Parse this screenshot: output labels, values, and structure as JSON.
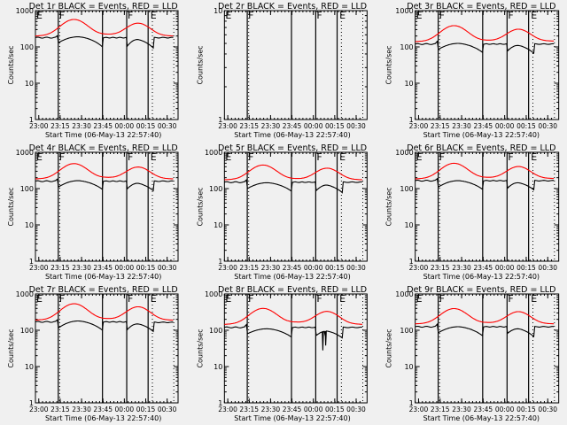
{
  "chart_data": [
    {
      "type": "line",
      "title": "Det 1r BLACK = Events, RED = LLD",
      "ylabel": "Counts/sec",
      "xlabel": "Start Time (06-May-13 22:57:40)",
      "yscale": "log",
      "ylim": [
        1,
        1000
      ],
      "yticks": [
        "1",
        "10",
        "100",
        "1000"
      ],
      "xticks": [
        "23:00",
        "23:15",
        "23:30",
        "23:45",
        "00:00",
        "00:15",
        "00:30"
      ],
      "markers": [
        {
          "label": "E",
          "x_min": 0
        },
        {
          "label": "F",
          "x_min": 16
        },
        {
          "label": "F",
          "x_min": 64
        },
        {
          "label": "E",
          "x_min": 80
        }
      ],
      "solid_lines_min": [
        16,
        47,
        64,
        79
      ],
      "dotted_lines_min": [
        17,
        82,
        97
      ],
      "series": [
        {
          "name": "Events",
          "color": "#000000",
          "shape": {
            "base": 180,
            "d1": [
              130,
              190,
              100
            ],
            "d2": [
              100,
              160,
              90
            ],
            "end": 180
          }
        },
        {
          "name": "LLD",
          "color": "#ff0000",
          "shape": {
            "base": 200,
            "peak1": 560,
            "mid": 220,
            "peak2": 460,
            "end": 200
          }
        }
      ]
    },
    {
      "type": "line",
      "title": "Det 2r BLACK = Events, RED = LLD",
      "ylabel": "Counts/sec",
      "xlabel": "Start Time (06-May-13 22:57:40)",
      "yscale": "log",
      "ylim": [
        1,
        10
      ],
      "yticks": [
        "1",
        "10"
      ],
      "xticks": [
        "23:00",
        "23:15",
        "23:30",
        "23:45",
        "00:00",
        "00:15",
        "00:30"
      ],
      "markers": [
        {
          "label": "E",
          "x_min": 0
        },
        {
          "label": "F",
          "x_min": 16
        },
        {
          "label": "F",
          "x_min": 64
        },
        {
          "label": "E",
          "x_min": 80
        }
      ],
      "solid_lines_min": [
        16,
        47,
        64,
        79
      ],
      "dotted_lines_min": [
        17,
        82,
        97
      ],
      "series": []
    },
    {
      "type": "line",
      "title": "Det 3r BLACK = Events, RED = LLD",
      "ylabel": "Counts/sec",
      "xlabel": "Start Time (06-May-13 22:57:40)",
      "yscale": "log",
      "ylim": [
        1,
        1000
      ],
      "yticks": [
        "1",
        "10",
        "100",
        "1000"
      ],
      "xticks": [
        "23:00",
        "23:15",
        "23:30",
        "23:45",
        "00:00",
        "00:15",
        "00:30"
      ],
      "markers": [
        {
          "label": "E",
          "x_min": 0
        },
        {
          "label": "F",
          "x_min": 16
        },
        {
          "label": "F",
          "x_min": 64
        },
        {
          "label": "E",
          "x_min": 80
        }
      ],
      "solid_lines_min": [
        16,
        47,
        64,
        79
      ],
      "dotted_lines_min": [
        17,
        82,
        97
      ],
      "series": [
        {
          "name": "Events",
          "color": "#000000",
          "shape": {
            "base": 120,
            "d1": [
              85,
              125,
              70
            ],
            "d2": [
              75,
              110,
              65
            ],
            "end": 120
          }
        },
        {
          "name": "LLD",
          "color": "#ff0000",
          "shape": {
            "base": 140,
            "peak1": 380,
            "mid": 150,
            "peak2": 310,
            "end": 145
          }
        }
      ]
    },
    {
      "type": "line",
      "title": "Det 4r BLACK = Events, RED = LLD",
      "ylabel": "Counts/sec",
      "xlabel": "Start Time (06-May-13 22:57:40)",
      "yscale": "log",
      "ylim": [
        1,
        1000
      ],
      "yticks": [
        "1",
        "10",
        "100",
        "1000"
      ],
      "xticks": [
        "23:00",
        "23:15",
        "23:30",
        "23:45",
        "00:00",
        "00:15",
        "00:30"
      ],
      "markers": [
        {
          "label": "E",
          "x_min": 0
        },
        {
          "label": "F",
          "x_min": 16
        },
        {
          "label": "F",
          "x_min": 64
        },
        {
          "label": "E",
          "x_min": 80
        }
      ],
      "solid_lines_min": [
        16,
        47,
        64,
        79
      ],
      "dotted_lines_min": [
        17,
        82,
        97
      ],
      "series": [
        {
          "name": "Events",
          "color": "#000000",
          "shape": {
            "base": 160,
            "d1": [
              110,
              165,
              95
            ],
            "d2": [
              95,
              140,
              85
            ],
            "end": 160
          }
        },
        {
          "name": "LLD",
          "color": "#ff0000",
          "shape": {
            "base": 185,
            "peak1": 480,
            "mid": 200,
            "peak2": 400,
            "end": 185
          }
        }
      ]
    },
    {
      "type": "line",
      "title": "Det 5r BLACK = Events, RED = LLD",
      "ylabel": "Counts/sec",
      "xlabel": "Start Time (06-May-13 22:57:40)",
      "yscale": "log",
      "ylim": [
        1,
        1000
      ],
      "yticks": [
        "1",
        "10",
        "100",
        "1000"
      ],
      "xticks": [
        "23:00",
        "23:15",
        "23:30",
        "23:45",
        "00:00",
        "00:15",
        "00:30"
      ],
      "markers": [
        {
          "label": "E",
          "x_min": 0
        },
        {
          "label": "F",
          "x_min": 16
        },
        {
          "label": "F",
          "x_min": 64
        },
        {
          "label": "E",
          "x_min": 80
        }
      ],
      "solid_lines_min": [
        16,
        47,
        64,
        79
      ],
      "dotted_lines_min": [
        17,
        82,
        97
      ],
      "series": [
        {
          "name": "Events",
          "color": "#000000",
          "shape": {
            "base": 150,
            "d1": [
              100,
              145,
              85
            ],
            "d2": [
              85,
              125,
              75
            ],
            "end": 150
          }
        },
        {
          "name": "LLD",
          "color": "#ff0000",
          "shape": {
            "base": 175,
            "peak1": 440,
            "mid": 185,
            "peak2": 370,
            "end": 175
          }
        }
      ]
    },
    {
      "type": "line",
      "title": "Det 6r BLACK = Events, RED = LLD",
      "ylabel": "Counts/sec",
      "xlabel": "Start Time (06-May-13 22:57:40)",
      "yscale": "log",
      "ylim": [
        1,
        1000
      ],
      "yticks": [
        "1",
        "10",
        "100",
        "1000"
      ],
      "xticks": [
        "23:00",
        "23:15",
        "23:30",
        "23:45",
        "00:00",
        "00:15",
        "00:30"
      ],
      "markers": [
        {
          "label": "E",
          "x_min": 0
        },
        {
          "label": "F",
          "x_min": 16
        },
        {
          "label": "F",
          "x_min": 64
        },
        {
          "label": "E",
          "x_min": 80
        }
      ],
      "solid_lines_min": [
        16,
        47,
        64,
        79
      ],
      "dotted_lines_min": [
        17,
        82,
        97
      ],
      "series": [
        {
          "name": "Events",
          "color": "#000000",
          "shape": {
            "base": 165,
            "d1": [
              110,
              165,
              95
            ],
            "d2": [
              100,
              145,
              90
            ],
            "end": 165
          }
        },
        {
          "name": "LLD",
          "color": "#ff0000",
          "shape": {
            "base": 185,
            "peak1": 490,
            "mid": 200,
            "peak2": 410,
            "end": 190
          }
        }
      ]
    },
    {
      "type": "line",
      "title": "Det 7r BLACK = Events, RED = LLD",
      "ylabel": "Counts/sec",
      "xlabel": "Start Time (06-May-13 22:57:40)",
      "yscale": "log",
      "ylim": [
        1,
        1000
      ],
      "yticks": [
        "1",
        "10",
        "100",
        "1000"
      ],
      "xticks": [
        "23:00",
        "23:15",
        "23:30",
        "23:45",
        "00:00",
        "00:15",
        "00:30"
      ],
      "markers": [
        {
          "label": "E",
          "x_min": 0
        },
        {
          "label": "F",
          "x_min": 16
        },
        {
          "label": "F",
          "x_min": 64
        },
        {
          "label": "E",
          "x_min": 80
        }
      ],
      "solid_lines_min": [
        16,
        47,
        64,
        79
      ],
      "dotted_lines_min": [
        17,
        82,
        97
      ],
      "series": [
        {
          "name": "Events",
          "color": "#000000",
          "shape": {
            "base": 170,
            "d1": [
              115,
              180,
              100
            ],
            "d2": [
              100,
              150,
              90
            ],
            "end": 165
          }
        },
        {
          "name": "LLD",
          "color": "#ff0000",
          "shape": {
            "base": 190,
            "peak1": 530,
            "mid": 205,
            "peak2": 450,
            "end": 190
          }
        }
      ]
    },
    {
      "type": "line",
      "title": "Det 8r BLACK = Events, RED = LLD",
      "ylabel": "Counts/sec",
      "xlabel": "Start Time (06-May-13 22:57:40)",
      "yscale": "log",
      "ylim": [
        1,
        1000
      ],
      "yticks": [
        "1",
        "10",
        "100",
        "1000"
      ],
      "xticks": [
        "23:00",
        "23:15",
        "23:30",
        "23:45",
        "00:00",
        "00:15",
        "00:30"
      ],
      "markers": [
        {
          "label": "E",
          "x_min": 0
        },
        {
          "label": "F",
          "x_min": 16
        },
        {
          "label": "F",
          "x_min": 64
        },
        {
          "label": "E",
          "x_min": 80
        }
      ],
      "solid_lines_min": [
        16,
        47,
        64,
        79
      ],
      "dotted_lines_min": [
        17,
        82,
        97
      ],
      "series": [
        {
          "name": "Events",
          "color": "#000000",
          "shape": {
            "base": 120,
            "d1": [
              80,
              110,
              65
            ],
            "d2": [
              70,
              95,
              60
            ],
            "end": 120
          },
          "dips": [
            {
              "x_min": 69,
              "value": 28
            },
            {
              "x_min": 71,
              "value": 38
            }
          ]
        },
        {
          "name": "LLD",
          "color": "#ff0000",
          "shape": {
            "base": 145,
            "peak1": 390,
            "mid": 165,
            "peak2": 340,
            "end": 145
          }
        }
      ]
    },
    {
      "type": "line",
      "title": "Det 9r BLACK = Events, RED = LLD",
      "ylabel": "Counts/sec",
      "xlabel": "Start Time (06-May-13 22:57:40)",
      "yscale": "log",
      "ylim": [
        1,
        1000
      ],
      "yticks": [
        "1",
        "10",
        "100",
        "1000"
      ],
      "xticks": [
        "23:00",
        "23:15",
        "23:30",
        "23:45",
        "00:00",
        "00:15",
        "00:30"
      ],
      "markers": [
        {
          "label": "E",
          "x_min": 0
        },
        {
          "label": "F",
          "x_min": 16
        },
        {
          "label": "F",
          "x_min": 64
        },
        {
          "label": "E",
          "x_min": 80
        }
      ],
      "solid_lines_min": [
        16,
        47,
        64,
        79
      ],
      "dotted_lines_min": [
        17,
        82,
        97
      ],
      "series": [
        {
          "name": "Events",
          "color": "#000000",
          "shape": {
            "base": 125,
            "d1": [
              85,
              125,
              70
            ],
            "d2": [
              80,
              110,
              65
            ],
            "end": 125
          }
        },
        {
          "name": "LLD",
          "color": "#ff0000",
          "shape": {
            "base": 150,
            "peak1": 390,
            "mid": 160,
            "peak2": 330,
            "end": 150
          }
        }
      ]
    }
  ]
}
